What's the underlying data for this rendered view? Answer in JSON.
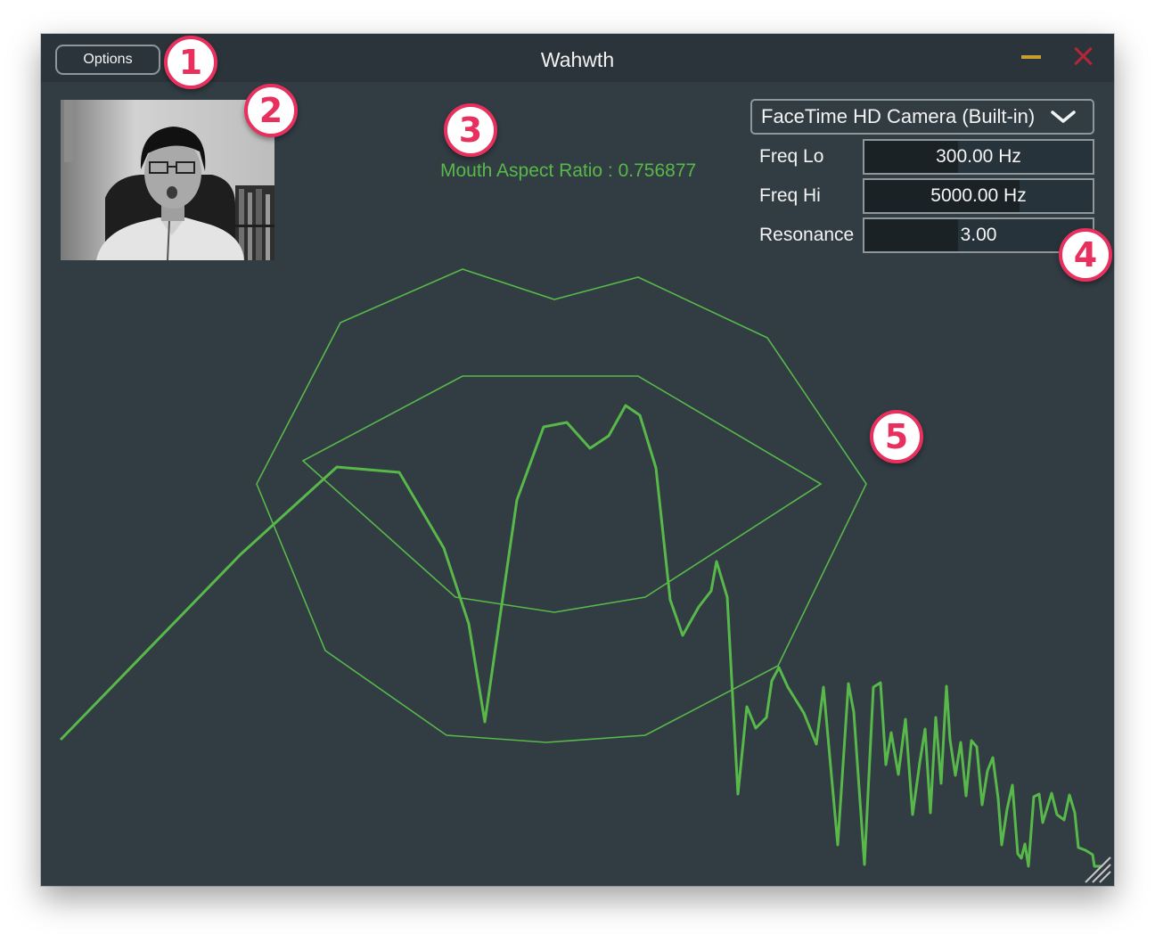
{
  "window": {
    "title": "Wahwth",
    "options_label": "Options"
  },
  "mouth": {
    "aspect_ratio_text": "Mouth Aspect Ratio : 0.756877"
  },
  "controls": {
    "camera_selected": "FaceTime HD Camera (Built-in)",
    "params": [
      {
        "label": "Freq Lo",
        "value": "300.00 Hz",
        "fill": 0.41
      },
      {
        "label": "Freq Hi",
        "value": "5000.00 Hz",
        "fill": 0.68
      },
      {
        "label": "Resonance",
        "value": "3.00",
        "fill": 0.41
      }
    ]
  },
  "markers": [
    "1",
    "2",
    "3",
    "4",
    "5"
  ],
  "colors": {
    "accent_green": "#58b94a",
    "background": "#313c43",
    "titlebar": "#2b343a",
    "minimize": "#c4a12e",
    "close": "#b5253a",
    "marker": "#e8305e"
  },
  "icons": {
    "chevron": "chevron-down-icon",
    "minimize": "minimize-icon",
    "close": "close-icon",
    "resize": "resize-grip-icon"
  }
}
